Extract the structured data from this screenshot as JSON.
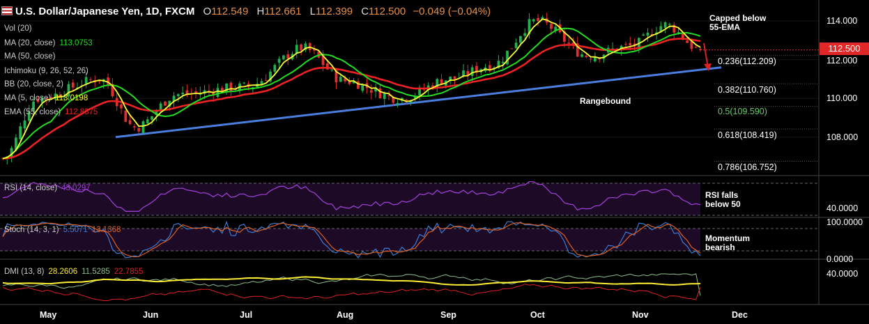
{
  "header": {
    "symbol": "U.S. Dollar/Japanese Yen, 1D, FXCM",
    "open_label": "O",
    "open": "112.549",
    "high_label": "H",
    "high": "112.661",
    "low_label": "L",
    "low": "112.399",
    "close_label": "C",
    "close": "112.500",
    "change": "−0.049 (−0.04%)"
  },
  "price_tag": "112.500",
  "indicators": [
    {
      "label": "Vol (20)",
      "value": ""
    },
    {
      "label": "MA (20, close)",
      "value": "113.0753",
      "color": "#22dd22"
    },
    {
      "label": "MA (50, close)",
      "value": ""
    },
    {
      "label": "Ichimoku (9, 26, 52, 26)",
      "value": ""
    },
    {
      "label": "BB (20, close, 2)",
      "value": ""
    },
    {
      "label": "MA (5, close)",
      "value": "113.0198",
      "color": "#ffff33"
    },
    {
      "label": "EMA (55, close)",
      "value": "112.8375",
      "color": "#ee2222"
    }
  ],
  "annotations": {
    "capped": "Capped below\n55-EMA",
    "rangebound": "Rangebound",
    "rsi": "RSI falls\nbelow 50",
    "momentum": "Momentum\nbearish"
  },
  "fib_levels": [
    "0.236(112.209)",
    "0.382(110.760)",
    "0.5(109.590)",
    "0.618(108.419)",
    "0.786(106.752)"
  ],
  "y_axis": [
    "114.000",
    "112.000",
    "110.000",
    "108.000"
  ],
  "x_axis": [
    "May",
    "Jun",
    "Jul",
    "Aug",
    "Sep",
    "Oct",
    "Nov",
    "Dec"
  ],
  "rsi": {
    "label": "RSI (14, close)",
    "value": "43.0297",
    "axis": "40.0000"
  },
  "stoch": {
    "label": "Stoch (14, 3, 1)",
    "k": "5.5071",
    "d": "13.1368",
    "axis_top": "100.0000",
    "axis_bottom": "0.0000"
  },
  "dmi": {
    "label": "DMI (13, 8)",
    "adx": "28.2606",
    "plus": "11.5285",
    "minus": "22.7855",
    "axis": "40.0000"
  },
  "colors": {
    "bull": "#22b14c",
    "bear": "#e03030",
    "ma5": "#ffff33",
    "ma20": "#22dd22",
    "ema55": "#ee2222",
    "trend": "#4a7fe0",
    "rsi": "#9b3fd0",
    "stoch_k": "#3b7dd8",
    "stoch_d": "#e06020",
    "adx": "#ffee33",
    "di_plus": "#8fbf8f",
    "di_minus": "#e02020"
  },
  "chart_data": {
    "type": "candlestick",
    "title": "U.S. Dollar/Japanese Yen, 1D, FXCM",
    "xlabel": "",
    "ylabel": "",
    "ylim": [
      105.9,
      114.8
    ],
    "x_ticks": [
      "May",
      "Jun",
      "Jul",
      "Aug",
      "Sep",
      "Oct",
      "Nov",
      "Dec"
    ],
    "close_series": [
      {
        "month": "May-start",
        "close": 106.9
      },
      {
        "month": "May-mid",
        "close": 110.0
      },
      {
        "month": "May-end",
        "close": 111.0
      },
      {
        "month": "Jun-start",
        "close": 108.5
      },
      {
        "month": "Jun-mid",
        "close": 110.2
      },
      {
        "month": "Jul-start",
        "close": 110.6
      },
      {
        "month": "Jul-mid",
        "close": 112.6
      },
      {
        "month": "Aug-start",
        "close": 110.9
      },
      {
        "month": "Aug-mid",
        "close": 110.0
      },
      {
        "month": "Sep-start",
        "close": 111.0
      },
      {
        "month": "Sep-mid",
        "close": 111.7
      },
      {
        "month": "Oct-start",
        "close": 114.0
      },
      {
        "month": "Oct-mid",
        "close": 112.2
      },
      {
        "month": "Nov-start",
        "close": 112.7
      },
      {
        "month": "Nov-mid",
        "close": 113.8
      },
      {
        "month": "Nov-last",
        "close": 112.5
      }
    ],
    "last": {
      "open": 112.549,
      "high": 112.661,
      "low": 112.399,
      "close": 112.5
    },
    "trendline": {
      "from": {
        "month": "late-May",
        "price": 108.0
      },
      "to": {
        "month": "Dec",
        "price": 111.6
      }
    },
    "fibonacci": [
      {
        "level": 0.236,
        "price": 112.209
      },
      {
        "level": 0.382,
        "price": 110.76
      },
      {
        "level": 0.5,
        "price": 109.59
      },
      {
        "level": 0.618,
        "price": 108.419
      },
      {
        "level": 0.786,
        "price": 106.752
      }
    ],
    "series": [
      {
        "name": "MA (5, close)",
        "last": 113.0198
      },
      {
        "name": "MA (20, close)",
        "last": 113.0753
      },
      {
        "name": "EMA (55, close)",
        "last": 112.8375
      }
    ],
    "panels": [
      {
        "name": "RSI (14, close)",
        "last": 43.0297,
        "levels": [
          30,
          70
        ]
      },
      {
        "name": "Stoch (14, 3, 1)",
        "k": 5.5071,
        "d": 13.1368,
        "levels": [
          20,
          80
        ]
      },
      {
        "name": "DMI (13, 8)",
        "adx": 28.2606,
        "plus_di": 11.5285,
        "minus_di": 22.7855
      }
    ]
  }
}
